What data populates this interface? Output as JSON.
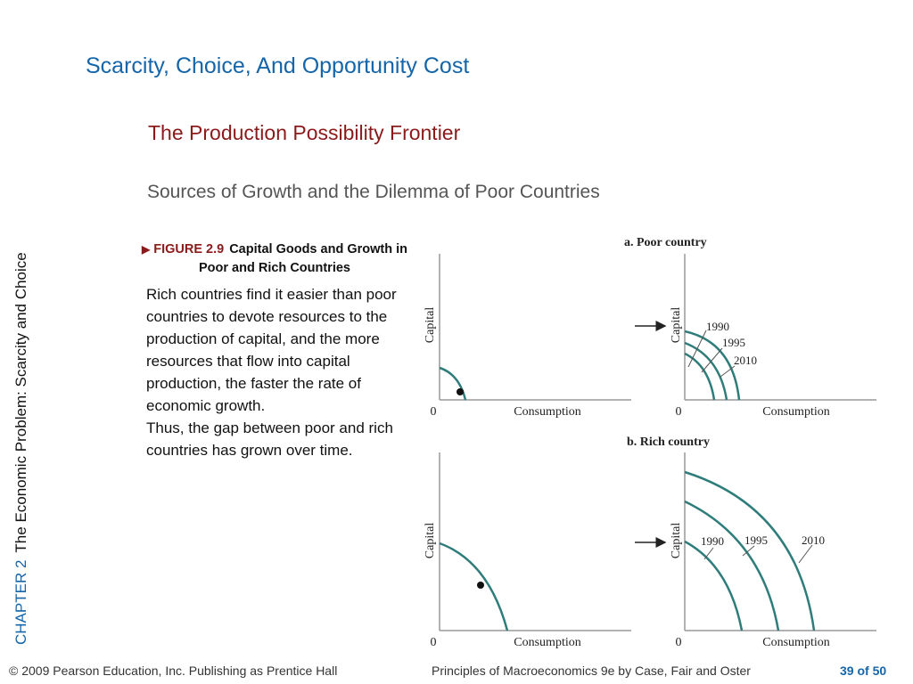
{
  "slide": {
    "title": "Scarcity, Choice, And Opportunity Cost",
    "subtitle": "The Production Possibility Frontier",
    "heading": "Sources of Growth and the Dilemma of Poor Countries",
    "sidebar_chapter": "CHAPTER 2",
    "sidebar_title": "The Economic Problem:  Scarcity and Choice"
  },
  "figure": {
    "number": "FIGURE 2.9",
    "caption": "Capital Goods and Growth in Poor and Rich Countries",
    "description": "Rich countries find it easier than poor countries to devote resources to the production of capital, and the more resources that flow into capital production, the faster the rate of economic growth.",
    "description2": "Thus, the gap between poor and rich countries has grown over time."
  },
  "footer": {
    "copyright": "© 2009 Pearson Education, Inc. Publishing as Prentice Hall",
    "book": "Principles of Macroeconomics 9e by Case, Fair and Oster",
    "page": "39 of 50"
  },
  "colors": {
    "title": "#1565a9",
    "subtitle": "#8b1a1a",
    "curve": "#2f7d7b"
  },
  "chart_data": [
    {
      "type": "line",
      "title": "a. Poor country",
      "panel": "left",
      "xlabel": "Consumption",
      "ylabel": "Capital",
      "origin_label": "0",
      "series": [],
      "curves": [],
      "point": true
    },
    {
      "type": "line",
      "title": "a. Poor country",
      "panel": "right",
      "xlabel": "Consumption",
      "ylabel": "Capital",
      "origin_label": "0",
      "series": [
        {
          "name": "1990"
        },
        {
          "name": "1995"
        },
        {
          "name": "2010"
        }
      ],
      "arrow": true
    },
    {
      "type": "line",
      "title": "b. Rich country",
      "panel": "left",
      "xlabel": "Consumption",
      "ylabel": "Capital",
      "origin_label": "0",
      "series": [],
      "point": true
    },
    {
      "type": "line",
      "title": "b. Rich country",
      "panel": "right",
      "xlabel": "Consumption",
      "ylabel": "Capital",
      "origin_label": "0",
      "series": [
        {
          "name": "1990"
        },
        {
          "name": "1995"
        },
        {
          "name": "2010"
        }
      ],
      "arrow": true
    }
  ]
}
